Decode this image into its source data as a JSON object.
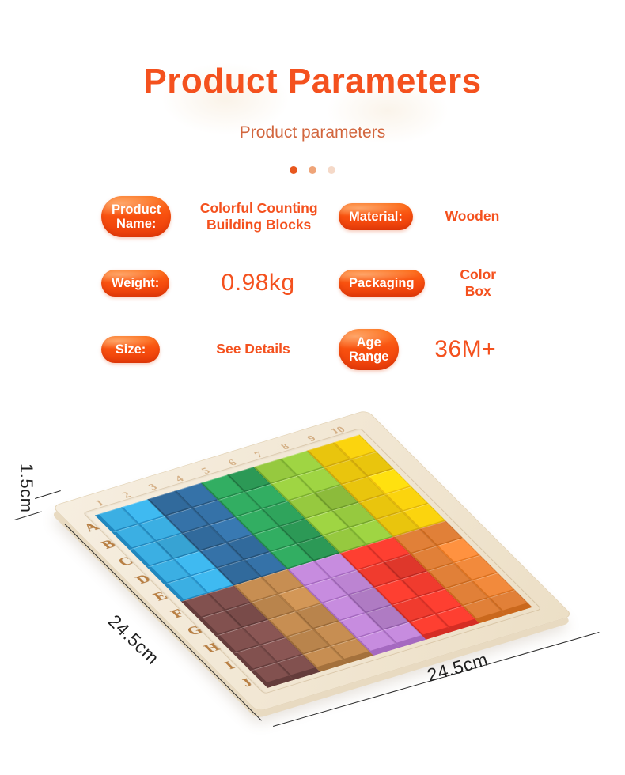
{
  "header": {
    "title": "Product Parameters",
    "subtitle": "Product parameters",
    "accent_color": "#f4511e"
  },
  "carousel": {
    "dots": [
      {
        "state": "active",
        "color": "#e8571e"
      },
      {
        "state": "inactive",
        "color": "#efa478"
      },
      {
        "state": "inactive",
        "color": "#f5d9c8"
      }
    ]
  },
  "parameters": [
    {
      "label": "Product\nName:",
      "value": "Colorful Counting\nBuilding Blocks",
      "value_style": "bold"
    },
    {
      "label": "Material:",
      "value": "Wooden",
      "value_style": "bold"
    },
    {
      "label": "Weight:",
      "value": "0.98kg",
      "value_style": "large"
    },
    {
      "label": "Packaging",
      "value": "Color\nBox",
      "value_style": "bold"
    },
    {
      "label": "Size:",
      "value": "See Details",
      "value_style": "bold"
    },
    {
      "label": "Age\nRange",
      "value": "36M+",
      "value_style": "large"
    }
  ],
  "product_image": {
    "description": "wooden tray with 100 colorful counting cubes",
    "row_labels": [
      "A",
      "B",
      "C",
      "D",
      "E",
      "F",
      "G",
      "H",
      "I",
      "J"
    ],
    "col_labels": [
      "1",
      "2",
      "3",
      "4",
      "5",
      "6",
      "7",
      "8",
      "9",
      "10"
    ],
    "dimensions": {
      "thickness": "1.5cm",
      "left_edge": "24.5cm",
      "bottom_edge": "24.5cm"
    },
    "wood": {
      "frame_top": "#f3ead9",
      "frame_side": "#e8dac1",
      "engraving": "#b97f42",
      "recess": "#d9c7a8"
    },
    "color_groups": {
      "top_half": [
        {
          "name": "sky-blue",
          "top": "#3bafe3",
          "side": "#2187be"
        },
        {
          "name": "blue",
          "top": "#3572a8",
          "side": "#27567f"
        },
        {
          "name": "green",
          "top": "#2fa45c",
          "side": "#1f7f45"
        },
        {
          "name": "lime",
          "top": "#96c93f",
          "side": "#74a52b"
        },
        {
          "name": "yellow",
          "top": "#fbd40e",
          "side": "#dfb40a"
        }
      ],
      "bottom_half": [
        {
          "name": "maroon",
          "top": "#82514f",
          "side": "#643c3b"
        },
        {
          "name": "tan",
          "top": "#c78e52",
          "side": "#a4713c"
        },
        {
          "name": "purple",
          "top": "#bc84d2",
          "side": "#9c63b5"
        },
        {
          "name": "red",
          "top": "#f03b2e",
          "side": "#c92a22"
        },
        {
          "name": "orange",
          "top": "#f28a3c",
          "side": "#d9701f"
        }
      ]
    }
  }
}
